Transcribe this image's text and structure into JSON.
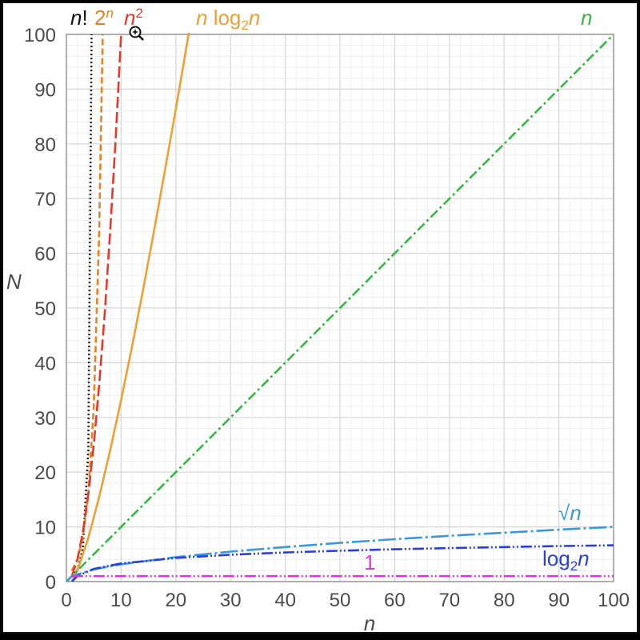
{
  "chart_data": {
    "type": "line",
    "title": "",
    "xlabel": "n",
    "ylabel": "N",
    "xlim": [
      0,
      100
    ],
    "ylim": [
      0,
      100
    ],
    "grid": true,
    "x_ticks": [
      0,
      10,
      20,
      30,
      40,
      50,
      60,
      70,
      80,
      90,
      100
    ],
    "y_ticks": [
      0,
      10,
      20,
      30,
      40,
      50,
      60,
      70,
      80,
      90,
      100
    ],
    "series": [
      {
        "id": "factorial",
        "name": "n!",
        "color": "#222222",
        "dash": "dotted",
        "x": [
          1,
          2,
          3,
          4,
          4.6
        ],
        "y": [
          1,
          2,
          6,
          24,
          100
        ]
      },
      {
        "id": "exponential",
        "name": "2ⁿ",
        "color": "#e8821e",
        "dash": "dashed",
        "x": [
          1,
          2,
          3,
          4,
          5,
          6,
          6.64
        ],
        "y": [
          2,
          4,
          8,
          16,
          32,
          64,
          100
        ]
      },
      {
        "id": "quadratic",
        "name": "n²",
        "color": "#e8382a",
        "dash": "longdash",
        "x": [
          1,
          2,
          3,
          4,
          5,
          6,
          7,
          8,
          9,
          10
        ],
        "y": [
          1,
          4,
          9,
          16,
          25,
          36,
          49,
          64,
          81,
          100
        ]
      },
      {
        "id": "nlogn",
        "name": "n log₂n",
        "color": "#f0a032",
        "dash": "solid",
        "x": [
          1,
          2,
          4,
          6,
          8,
          10,
          12,
          14,
          16,
          18,
          20,
          22.5
        ],
        "y": [
          0,
          2,
          8,
          15.5,
          24,
          33.2,
          43,
          53.3,
          64,
          75.1,
          86.4,
          101
        ]
      },
      {
        "id": "linear",
        "name": "n",
        "color": "#3bb54a",
        "dash": "dashdot",
        "x": [
          0,
          100
        ],
        "y": [
          0,
          100
        ]
      },
      {
        "id": "sqrt",
        "name": "√n",
        "color": "#3a9ad9",
        "dash": "longdashdot",
        "x": [
          0,
          1,
          5,
          10,
          20,
          30,
          40,
          50,
          60,
          70,
          80,
          90,
          100
        ],
        "y": [
          0,
          1,
          2.24,
          3.16,
          4.47,
          5.48,
          6.32,
          7.07,
          7.75,
          8.37,
          8.94,
          9.49,
          10
        ]
      },
      {
        "id": "log",
        "name": "log₂n",
        "color": "#2b3fe0",
        "dash": "dashdotdot",
        "x": [
          1,
          2,
          5,
          10,
          20,
          30,
          40,
          50,
          60,
          70,
          80,
          90,
          100
        ],
        "y": [
          0,
          1,
          2.32,
          3.32,
          4.32,
          4.91,
          5.32,
          5.64,
          5.91,
          6.13,
          6.32,
          6.49,
          6.64
        ]
      },
      {
        "id": "constant",
        "name": "1",
        "color": "#d63ad6",
        "dash": "dashdotdot",
        "x": [
          1,
          100
        ],
        "y": [
          1,
          1
        ]
      }
    ],
    "labels": {
      "factorial": {
        "base": "n",
        "suffix": "!"
      },
      "exponential": {
        "base": "2",
        "sup": "n"
      },
      "quadratic": {
        "base": "n",
        "sup": "2"
      },
      "nlogn": {
        "pre": "n",
        "mid": " log",
        "sub": "2",
        "post": "n"
      },
      "linear": {
        "base": "n"
      },
      "sqrt": {
        "base": "√",
        "post": "n"
      },
      "log": {
        "mid": "log",
        "sub": "2",
        "post": "n"
      },
      "constant": {
        "base": "1"
      }
    }
  }
}
